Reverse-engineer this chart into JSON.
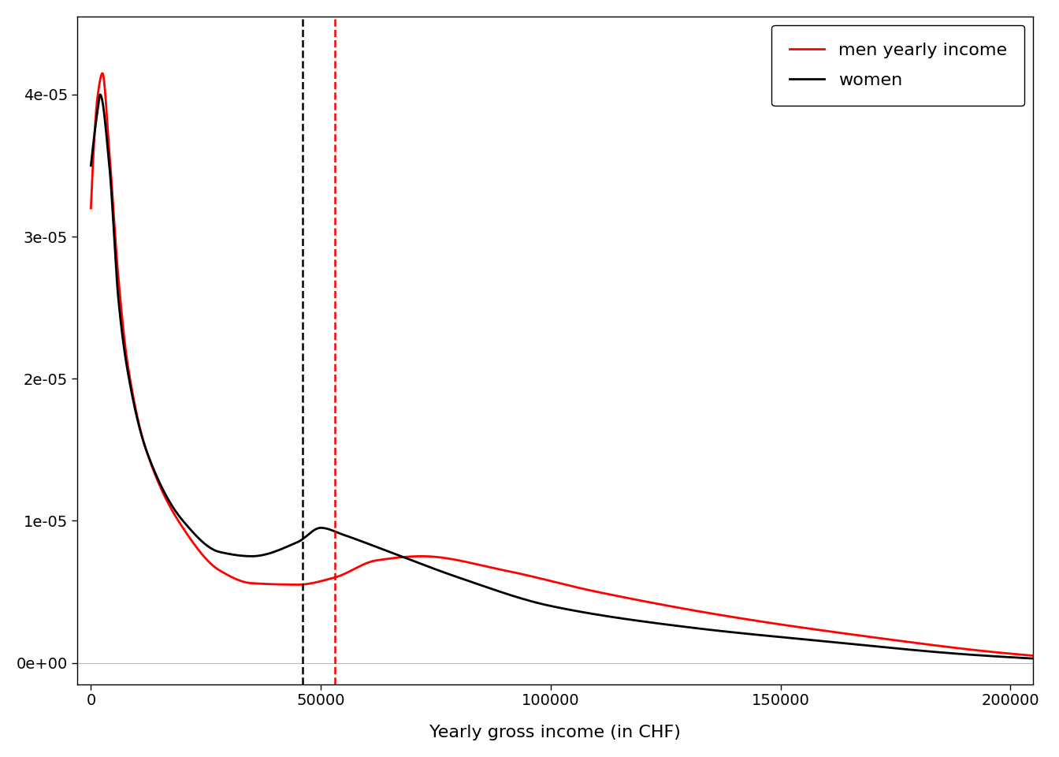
{
  "title": "",
  "xlabel": "Yearly gross income (in CHF)",
  "ylabel": "",
  "xlim": [
    -3000,
    205000
  ],
  "ylim": [
    -1.5e-06,
    4.55e-05
  ],
  "men_mean": 53000,
  "women_mean": 46000,
  "men_color": "#FF0000",
  "women_color": "#000000",
  "men_label": "men yearly income",
  "women_label": "women",
  "yticks": [
    0,
    1e-05,
    2e-05,
    3e-05,
    4e-05
  ],
  "ytick_labels": [
    "0e+00",
    "1e-05",
    "2e-05",
    "3e-05",
    "4e-05"
  ],
  "xticks": [
    0,
    50000,
    100000,
    150000,
    200000
  ],
  "background_color": "#FFFFFF",
  "line_width": 2.0,
  "legend_fontsize": 16,
  "axis_fontsize": 16,
  "tick_fontsize": 14
}
